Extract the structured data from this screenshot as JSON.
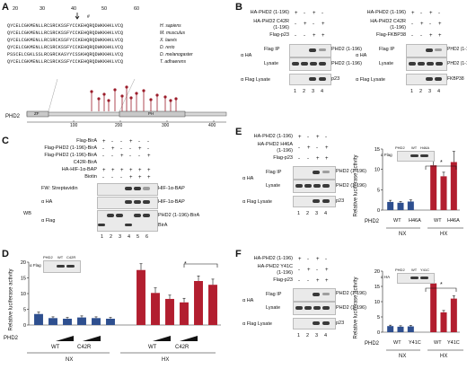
{
  "panel_labels": [
    "A",
    "B",
    "C",
    "D",
    "E",
    "F"
  ],
  "A": {
    "ruler": [
      "20",
      "30",
      "40",
      "50",
      "60"
    ],
    "sequences": [
      {
        "seq": "QYCELCGKMENLLRCSRCKSSFYCCKEHQRQDWKKHKLVCQ",
        "species": "H. sapiens"
      },
      {
        "seq": "QYCELCGKMENLLRCSRCKSSFYCCKEHQRQDWKKHKLVCQ",
        "species": "M. musculus"
      },
      {
        "seq": "QYCELCGKMENLLRCSRCKSSFYCCKEHQRQDWKKHKLVCQ",
        "species": "X. laevis"
      },
      {
        "seq": "QYCELCGKMENLLRCSRCKSSFYCCKEHQRQDWKKHKLVCQ",
        "species": "D. rerio"
      },
      {
        "seq": "PSSCELCGKLSSLRCGRCKASYYCSSKHQRQDWKKHKLVCQ",
        "species": "D. melanogaster"
      },
      {
        "seq": "QYCELCGKMENLLRCSRCKSSFYCCKEHQRQDWKKHKLVCQ",
        "species": "T. adhaerens"
      }
    ],
    "protein": "PHD2",
    "domain_zf": "ZF",
    "domain_ph": "PH",
    "axis_ticks": [
      "100",
      "200",
      "300",
      "400"
    ]
  },
  "B": {
    "left_rows": [
      "HA-PHD2 (1-196)",
      "HA-PHD2 C42R",
      "(1-196)",
      "Flag-p23"
    ],
    "left_signs": [
      [
        "+",
        "-",
        "+",
        "-"
      ],
      [
        "-",
        "+",
        "-",
        "+"
      ],
      [
        "-",
        "-",
        "+",
        "+"
      ]
    ],
    "right_rows": [
      "HA-PHD2 (1-196)",
      "HA-PHD2 C42R",
      "(1-196)",
      "Flag-FKBP38"
    ],
    "right_signs": [
      [
        "+",
        "-",
        "+",
        "-"
      ],
      [
        "-",
        "+",
        "-",
        "+"
      ],
      [
        "-",
        "-",
        "+",
        "+"
      ]
    ],
    "ab_ha": "α HA",
    "flag_ip": "Flag IP",
    "lysate": "Lysate",
    "flag_lysate": "α Flag Lysate",
    "band_phd2": "PHD2 (1-196)",
    "band_p23": "p23",
    "band_fkbp": "FKBP38",
    "lanes": [
      "1",
      "2",
      "3",
      "4"
    ]
  },
  "C": {
    "rows": [
      "Flag-BirA",
      "Flag-PHD2 (1-196)-BirA",
      "Flag-PHD2 (1-196)-BirA",
      "C42R-BirA",
      "HA-HIF-1α-BAP",
      "Biotin"
    ],
    "signs": [
      [
        "+",
        "-",
        "-",
        "+",
        "-",
        "-"
      ],
      [
        "-",
        "+",
        "-",
        "-",
        "+",
        "-"
      ],
      [
        "-",
        "-",
        "+",
        "-",
        "-",
        "+"
      ],
      [
        "+",
        "+",
        "+",
        "+",
        "+",
        "+"
      ],
      [
        "-",
        "-",
        "-",
        "+",
        "+",
        "+"
      ]
    ],
    "fw": "FW: Streptavidin",
    "wb": "WB",
    "ab_ha": "α HA",
    "ab_flag": "α Flag",
    "band_hif": "HIF-1α-BAP",
    "band_hif2": "HIF-1α-BAP",
    "band_birA": "PHD2 (1-196)-BirA",
    "band_birA2": "BirA",
    "lanes": [
      "1",
      "2",
      "3",
      "4",
      "5",
      "6"
    ]
  },
  "D": {
    "ylabel": "Relative luciferase activity",
    "inset_labels": [
      "PHD2",
      "WT",
      "C42R"
    ],
    "inset_ab": "α Flag",
    "xgroup": [
      "WT",
      "C42R"
    ],
    "conds": [
      "NX",
      "HX"
    ],
    "phd2": "PHD2",
    "star": "*"
  },
  "E": {
    "rows": [
      "HA-PHD2 (1-196)",
      "HA-PHD2 H46A",
      "(1-196)",
      "Flag-p23"
    ],
    "signs": [
      [
        "+",
        "-",
        "+",
        "-"
      ],
      [
        "-",
        "+",
        "-",
        "+"
      ],
      [
        "-",
        "-",
        "+",
        "+"
      ]
    ],
    "ab_ha": "α HA",
    "flag_ip": "Flag IP",
    "lysate": "Lysate",
    "flag_lysate": "α Flag Lysate",
    "band_phd2": "PHD2 (1-196)",
    "band_p23": "p23",
    "lanes": [
      "1",
      "2",
      "3",
      "4"
    ],
    "ylabel": "Relative luciferase activity",
    "inset_labels": [
      "PHD2",
      "WT",
      "H46A"
    ],
    "inset_ab": "α Flag",
    "xlabels": [
      "WT",
      "H46A",
      "WT",
      "H46A"
    ],
    "conds": [
      "NX",
      "HX"
    ],
    "phd2": "PHD2",
    "star": "*"
  },
  "F": {
    "rows": [
      "HA-PHD2 (1-196)",
      "HA-PHD2 Y41C",
      "(1-196)",
      "Flag-p23"
    ],
    "signs": [
      [
        "+",
        "-",
        "+",
        "-"
      ],
      [
        "-",
        "+",
        "-",
        "+"
      ],
      [
        "-",
        "-",
        "+",
        "+"
      ]
    ],
    "ab_ha": "α HA",
    "flag_ip": "Flag IP",
    "lysate": "Lysate",
    "flag_lysate": "α Flag Lysate",
    "band_phd2": "PHD2 (1-196)",
    "band_p23": "p23",
    "lanes": [
      "1",
      "2",
      "3",
      "4"
    ],
    "ylabel": "Relative luciferase activity",
    "inset_labels": [
      "PHD2",
      "WT",
      "Y41C"
    ],
    "inset_ab": "α HA",
    "xlabels": [
      "WT",
      "Y41C",
      "WT",
      "Y41C"
    ],
    "conds": [
      "NX",
      "HX"
    ],
    "phd2": "PHD2",
    "star": "*"
  },
  "chart_data": [
    {
      "type": "bar",
      "id": "D",
      "ylabel": "Relative luciferase activity",
      "ylim": [
        0,
        20
      ],
      "yticks": [
        0,
        5,
        10,
        15,
        20
      ],
      "categories": [
        "NX-1",
        "NX-2",
        "NX-3",
        "NX-4",
        "NX-5",
        "NX-6",
        "HX-1",
        "HX-2",
        "HX-3",
        "HX-4",
        "HX-5",
        "HX-6"
      ],
      "values": [
        3.5,
        2.2,
        2.0,
        2.4,
        2.2,
        2.0,
        17.5,
        10.2,
        8.3,
        7.2,
        14.0,
        12.8
      ],
      "errors": [
        0.6,
        0.4,
        0.4,
        0.5,
        0.4,
        0.4,
        2.0,
        1.6,
        1.2,
        1.3,
        1.6,
        1.8
      ],
      "colors": [
        "#2e4f8f",
        "#2e4f8f",
        "#2e4f8f",
        "#2e4f8f",
        "#2e4f8f",
        "#2e4f8f",
        "#b21e2f",
        "#b21e2f",
        "#b21e2f",
        "#b21e2f",
        "#b21e2f",
        "#b21e2f"
      ]
    },
    {
      "type": "bar",
      "id": "E",
      "ylabel": "Relative luciferase activity",
      "ylim": [
        0,
        15
      ],
      "yticks": [
        0,
        5,
        10,
        15
      ],
      "categories": [
        "NX-Ctrl",
        "NX-WT",
        "NX-H46A",
        "HX-Ctrl",
        "HX-WT",
        "HX-H46A"
      ],
      "values": [
        2.0,
        1.8,
        2.1,
        11.0,
        8.3,
        11.8
      ],
      "errors": [
        0.4,
        0.3,
        0.4,
        1.1,
        1.0,
        2.6
      ],
      "colors": [
        "#2e4f8f",
        "#2e4f8f",
        "#2e4f8f",
        "#b21e2f",
        "#b21e2f",
        "#b21e2f"
      ]
    },
    {
      "type": "bar",
      "id": "F",
      "ylabel": "Relative luciferase activity",
      "ylim": [
        0,
        20
      ],
      "yticks": [
        0,
        5,
        10,
        15,
        20
      ],
      "categories": [
        "NX-Ctrl",
        "NX-WT",
        "NX-Y41C",
        "HX-Ctrl",
        "HX-WT",
        "HX-Y41C"
      ],
      "values": [
        2.0,
        1.8,
        1.9,
        16.0,
        6.5,
        11.0
      ],
      "errors": [
        0.3,
        0.3,
        0.3,
        1.0,
        0.6,
        0.9
      ],
      "colors": [
        "#2e4f8f",
        "#2e4f8f",
        "#2e4f8f",
        "#b21e2f",
        "#b21e2f",
        "#b21e2f"
      ]
    }
  ]
}
